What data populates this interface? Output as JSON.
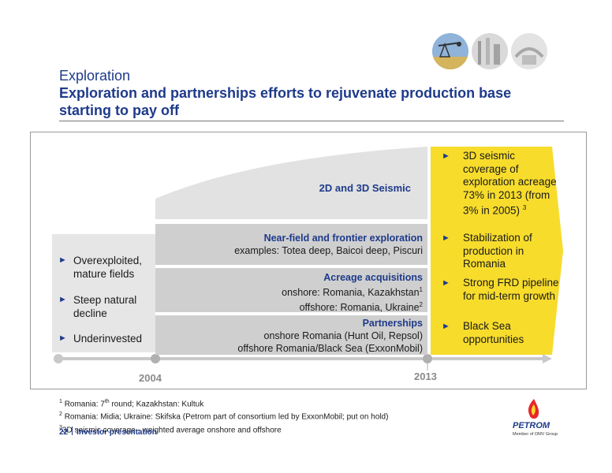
{
  "header": {
    "section": "Exploration",
    "title": "Exploration and partnerships efforts to rejuvenate production base starting to pay off"
  },
  "left_box": {
    "bullets": [
      "Overexploited, mature fields",
      "Steep natural decline",
      "Underinvested"
    ]
  },
  "seismic": {
    "label": "2D and 3D Seismic"
  },
  "bands": [
    {
      "title": "Near-field and frontier exploration",
      "lines": [
        "examples: Totea deep, Baicoi deep, Piscuri"
      ]
    },
    {
      "title": "Acreage acquisitions",
      "lines": [
        "onshore: Romania, Kazakhstan",
        "offshore: Romania, Ukraine"
      ],
      "sups": [
        "1",
        "2"
      ]
    },
    {
      "title": "Partnerships",
      "lines": [
        "onshore Romania (Hunt Oil, Repsol)",
        "offshore Romania/Black Sea (ExxonMobil)"
      ]
    }
  ],
  "highlights": {
    "bullets": [
      "3D seismic coverage of exploration acreage 73% in 2013 (from 3% in 2005)",
      "Stabilization of production in Romania",
      "Strong FRD pipeline for mid-term growth",
      "Black Sea opportunities"
    ],
    "first_sup": "3"
  },
  "timeline": {
    "start_year": "2004",
    "end_year": "2013"
  },
  "footnotes": [
    {
      "num": "1",
      "text": "Romania: 7",
      "sup": "th",
      "rest": " round; Kazakhstan: Kultuk"
    },
    {
      "num": "2",
      "text": "Romania: Midia; Ukraine: Skifska (Petrom part of consortium led by ExxonMobil; put on hold)"
    },
    {
      "num": "3",
      "text": "3D seismic coverage - weighted average onshore and offshore"
    }
  ],
  "footer": {
    "page": "22",
    "label": "Investor presentation"
  },
  "logo": {
    "name": "PETROM",
    "tagline": "Member of OMV Group"
  },
  "colors": {
    "brand_blue": "#1e3a8a",
    "highlight_yellow": "#f7dc2c",
    "band_gray": "#cfcfcf",
    "left_gray": "#e6e6e6"
  }
}
